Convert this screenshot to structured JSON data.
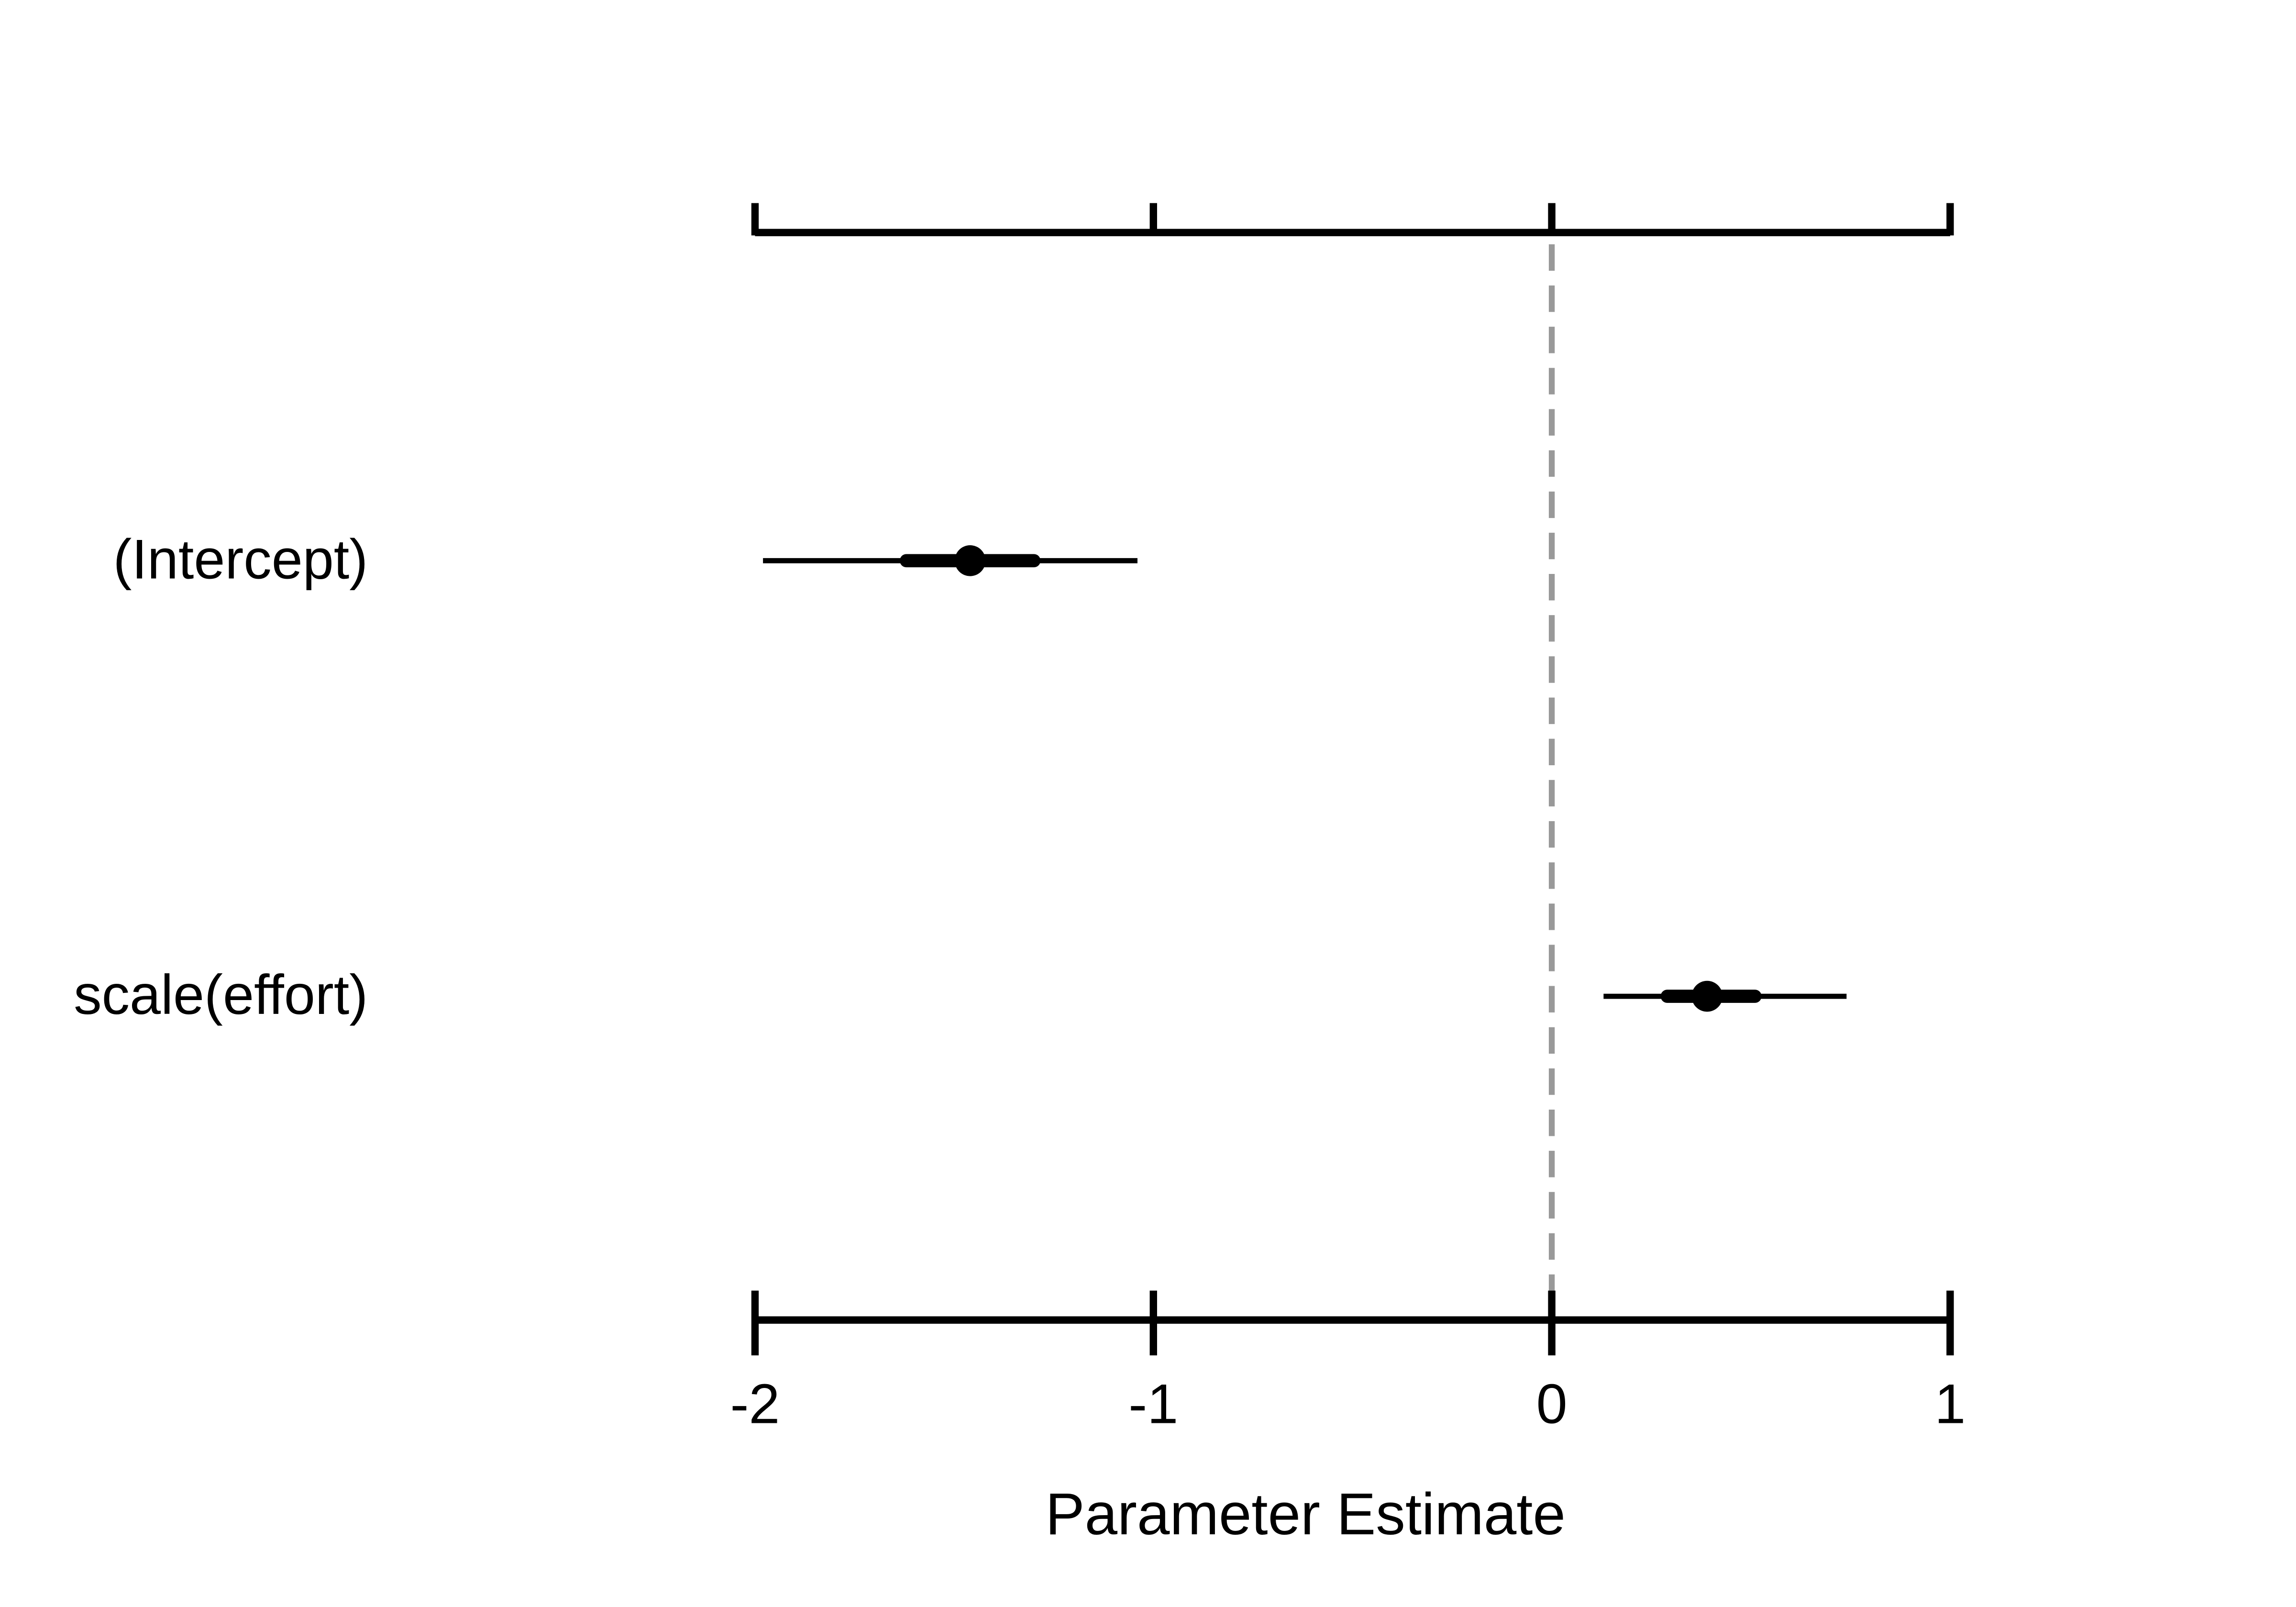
{
  "chart_data": {
    "type": "coefficient",
    "xlabel": "Parameter Estimate",
    "categories": [
      "(Intercept)",
      "scale(effort)"
    ],
    "values": [
      -1.46,
      0.39
    ],
    "inner_low": [
      -1.62,
      0.29
    ],
    "inner_high": [
      -1.3,
      0.51
    ],
    "outer_low": [
      -1.98,
      0.13
    ],
    "outer_high": [
      -1.04,
      0.74
    ],
    "color": "#000000",
    "xlim": [
      -2,
      1
    ],
    "xticks": [
      -2,
      -1,
      0,
      1
    ],
    "reference_line": {
      "value": 0,
      "color": "#999999",
      "dashed": true
    }
  }
}
